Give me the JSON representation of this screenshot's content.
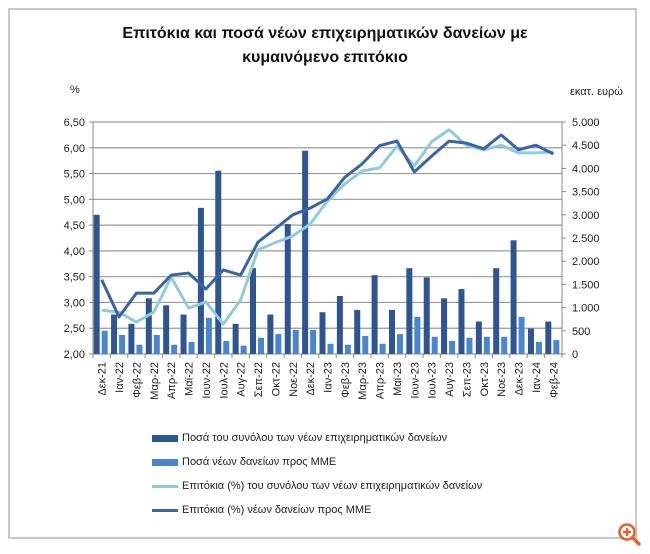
{
  "chart_data": {
    "type": "bar+line",
    "title": "Επιτόκια και ποσά νέων επιχειρηματικών δανείων με κυμαινόμενο επιτόκιο",
    "title_lines": [
      "Επιτόκια και ποσά νέων επιχειρηματικών δανείων με",
      "κυμαινόμενο επιτόκιο"
    ],
    "ylabel_left": "%",
    "ylabel_right": "εκατ. ευρώ",
    "ylim_left": [
      2.0,
      6.5
    ],
    "ylim_right": [
      0,
      5000
    ],
    "yticks_left": [
      "2,00",
      "2,50",
      "3,00",
      "3,50",
      "4,00",
      "4,50",
      "5,00",
      "5,50",
      "6,00",
      "6,50"
    ],
    "yticks_right": [
      "0",
      "500",
      "1.000",
      "1.500",
      "2.000",
      "2.500",
      "3.000",
      "3.500",
      "4.000",
      "4.500",
      "5.000"
    ],
    "grid": true,
    "legend_position": "bottom",
    "categories": [
      "Δεκ-21",
      "Ιαν-22",
      "Φεβ-22",
      "Μαρ-22",
      "Απρ-22",
      "Μαϊ-22",
      "Ιουν-22",
      "Ιουλ-22",
      "Αυγ-22",
      "Σεπ-22",
      "Οκτ-22",
      "Νοε-22",
      "Δεκ-22",
      "Ιαν-23",
      "Φεβ-23",
      "Μαρ-23",
      "Απρ-23",
      "Μαϊ-23",
      "Ιουν-23",
      "Ιουλ-23",
      "Αυγ-23",
      "Σεπ-23",
      "Οκτ-23",
      "Νοε-23",
      "Δεκ-23",
      "Ιαν-24",
      "Φεβ-24"
    ],
    "series": [
      {
        "name": "Ποσά του συνόλου των νέων επιχειρηματικών δανείων",
        "type": "bar",
        "axis": "right",
        "color": "#2e5590",
        "values": [
          3000,
          850,
          650,
          1200,
          1050,
          850,
          3150,
          3950,
          650,
          1850,
          850,
          2800,
          4380,
          900,
          1250,
          950,
          1700,
          950,
          1850,
          1650,
          1200,
          1400,
          700,
          1850,
          2450,
          550,
          700
        ]
      },
      {
        "name": "Ποσά νέων δανείων προς ΜΜΕ",
        "type": "bar",
        "axis": "right",
        "color": "#4a86cf",
        "values": [
          500,
          410,
          200,
          410,
          200,
          260,
          780,
          280,
          180,
          350,
          430,
          520,
          520,
          220,
          200,
          390,
          220,
          430,
          800,
          370,
          280,
          350,
          370,
          370,
          800,
          260,
          300
        ]
      },
      {
        "name": "Επιτόκια (%) του συνόλου των νέων επιχειρηματικών δανείων",
        "type": "line",
        "axis": "left",
        "color": "#8fcbdc",
        "values": [
          2.85,
          2.81,
          2.62,
          2.81,
          3.49,
          2.89,
          3.01,
          2.58,
          3.05,
          4.02,
          4.16,
          4.29,
          4.52,
          4.97,
          5.3,
          5.55,
          5.61,
          6.03,
          5.65,
          6.12,
          6.35,
          6.05,
          5.96,
          6.05,
          5.9,
          5.9,
          5.92
        ]
      },
      {
        "name": "Επιτόκια (%) νέων δανείων προς ΜΜΕ",
        "type": "line",
        "axis": "left",
        "color": "#3a64a6",
        "values": [
          3.44,
          2.72,
          3.18,
          3.18,
          3.53,
          3.57,
          3.26,
          3.63,
          3.53,
          4.17,
          4.43,
          4.7,
          4.83,
          5.01,
          5.43,
          5.69,
          6.04,
          6.13,
          5.53,
          5.84,
          6.13,
          6.09,
          5.98,
          6.25,
          5.96,
          6.05,
          5.88
        ]
      }
    ]
  },
  "icons": {
    "zoom": "zoom-in-icon"
  }
}
